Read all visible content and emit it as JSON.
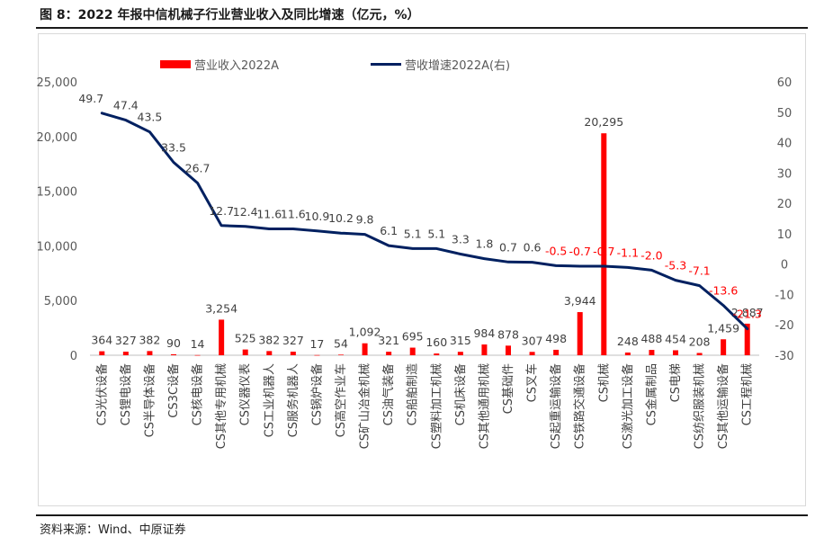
{
  "title": "图 8：2022 年报中信机械子行业营业收入及同比增速（亿元，%）",
  "source": "资料来源：Wind、中原证券",
  "colors": {
    "bar": "#ff0000",
    "line": "#002060",
    "neg_label": "#ff0000",
    "pos_label": "#404040",
    "axis_text": "#595959"
  },
  "chart_data": {
    "type": "bar",
    "title": "",
    "categories": [
      "CS光伏设备",
      "CS锂电设备",
      "CS半导体设备",
      "CS3C设备",
      "CS核电设备",
      "CS其他专用机械",
      "CS仪器仪表",
      "CS工业机器人",
      "CS服务机器人",
      "CS锅炉设备",
      "CS高空作业车",
      "CS矿山冶金机械",
      "CS油气装备",
      "CS船舶制造",
      "CS塑料加工机械",
      "CS机床设备",
      "CS其他通用机械",
      "CS基础件",
      "CS叉车",
      "CS起重运输设备",
      "CS铁路交通设备",
      "CS机械",
      "CS激光加工设备",
      "CS金属制品",
      "CS电梯",
      "CS纺织服装机械",
      "CS其他运输设备",
      "CS工程机械"
    ],
    "series": [
      {
        "name": "营业收入2022A",
        "type": "bar",
        "axis": "left",
        "values": [
          364,
          327,
          382,
          90,
          14,
          3254,
          525,
          382,
          327,
          17,
          54,
          1092,
          321,
          695,
          160,
          315,
          984,
          878,
          307,
          498,
          3944,
          20295,
          248,
          488,
          454,
          208,
          1459,
          2887
        ],
        "labels": [
          "364",
          "327",
          "382",
          "90",
          "14",
          "3,254",
          "525",
          "382",
          "327",
          "17",
          "54",
          "1,092",
          "321",
          "695",
          "160",
          "315",
          "984",
          "878",
          "307",
          "498",
          "3,944",
          "20,295",
          "248",
          "488",
          "454",
          "208",
          "1,459",
          "2,887"
        ]
      },
      {
        "name": "营收增速2022A(右)",
        "type": "line",
        "axis": "right",
        "values": [
          49.7,
          47.4,
          43.5,
          33.5,
          26.7,
          12.7,
          12.4,
          11.6,
          11.6,
          10.9,
          10.2,
          9.8,
          6.1,
          5.1,
          5.1,
          3.3,
          1.8,
          0.7,
          0.6,
          -0.5,
          -0.7,
          -0.7,
          -1.1,
          -2.0,
          -5.3,
          -7.1,
          -13.6,
          -21.3
        ],
        "labels": [
          "49.7",
          "47.4",
          "43.5",
          "33.5",
          "26.7",
          "12.7",
          "12.4",
          "11.6",
          "11.6",
          "10.9",
          "10.2",
          "9.8",
          "6.1",
          "5.1",
          "5.1",
          "3.3",
          "1.8",
          "0.7",
          "0.6",
          "-0.5",
          "-0.7",
          "-0.7",
          "-1.1",
          "-2.0",
          "-5.3",
          "-7.1",
          "-13.6",
          "-21.3"
        ]
      }
    ],
    "y_left": {
      "ylim": [
        0,
        25000
      ],
      "ticks": [
        "0",
        "5,000",
        "10,000",
        "15,000",
        "20,000",
        "25,000"
      ],
      "tick_values": [
        0,
        5000,
        10000,
        15000,
        20000,
        25000
      ]
    },
    "y_right": {
      "ylim": [
        -30,
        60
      ],
      "ticks": [
        "-30",
        "-20",
        "-10",
        "0",
        "10",
        "20",
        "30",
        "40",
        "50",
        "60"
      ],
      "tick_values": [
        -30,
        -20,
        -10,
        0,
        10,
        20,
        30,
        40,
        50,
        60
      ]
    },
    "grid": false,
    "legend_position": "top-center"
  }
}
